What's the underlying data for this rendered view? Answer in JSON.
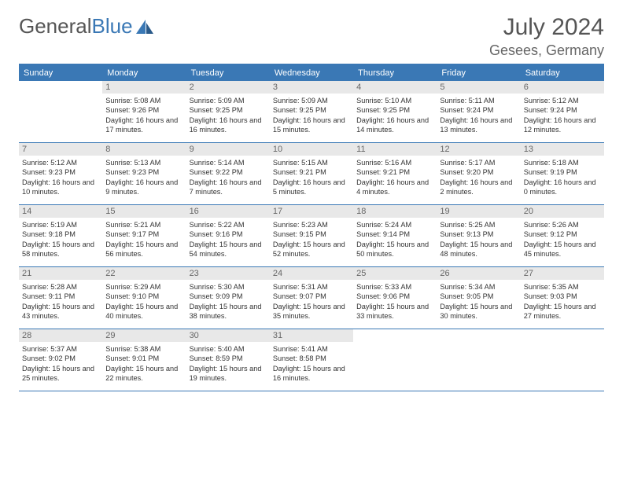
{
  "logo": {
    "text1": "General",
    "text2": "Blue"
  },
  "title": "July 2024",
  "location": "Gesees, Germany",
  "weekdays": [
    "Sunday",
    "Monday",
    "Tuesday",
    "Wednesday",
    "Thursday",
    "Friday",
    "Saturday"
  ],
  "colors": {
    "header_bar": "#3a78b5",
    "daynum_bg": "#e8e8e8",
    "text": "#333333",
    "title": "#555555"
  },
  "layout": {
    "start_offset": 1,
    "days_in_month": 31
  },
  "days": [
    {
      "n": 1,
      "sunrise": "5:08 AM",
      "sunset": "9:26 PM",
      "daylight": "16 hours and 17 minutes."
    },
    {
      "n": 2,
      "sunrise": "5:09 AM",
      "sunset": "9:25 PM",
      "daylight": "16 hours and 16 minutes."
    },
    {
      "n": 3,
      "sunrise": "5:09 AM",
      "sunset": "9:25 PM",
      "daylight": "16 hours and 15 minutes."
    },
    {
      "n": 4,
      "sunrise": "5:10 AM",
      "sunset": "9:25 PM",
      "daylight": "16 hours and 14 minutes."
    },
    {
      "n": 5,
      "sunrise": "5:11 AM",
      "sunset": "9:24 PM",
      "daylight": "16 hours and 13 minutes."
    },
    {
      "n": 6,
      "sunrise": "5:12 AM",
      "sunset": "9:24 PM",
      "daylight": "16 hours and 12 minutes."
    },
    {
      "n": 7,
      "sunrise": "5:12 AM",
      "sunset": "9:23 PM",
      "daylight": "16 hours and 10 minutes."
    },
    {
      "n": 8,
      "sunrise": "5:13 AM",
      "sunset": "9:23 PM",
      "daylight": "16 hours and 9 minutes."
    },
    {
      "n": 9,
      "sunrise": "5:14 AM",
      "sunset": "9:22 PM",
      "daylight": "16 hours and 7 minutes."
    },
    {
      "n": 10,
      "sunrise": "5:15 AM",
      "sunset": "9:21 PM",
      "daylight": "16 hours and 5 minutes."
    },
    {
      "n": 11,
      "sunrise": "5:16 AM",
      "sunset": "9:21 PM",
      "daylight": "16 hours and 4 minutes."
    },
    {
      "n": 12,
      "sunrise": "5:17 AM",
      "sunset": "9:20 PM",
      "daylight": "16 hours and 2 minutes."
    },
    {
      "n": 13,
      "sunrise": "5:18 AM",
      "sunset": "9:19 PM",
      "daylight": "16 hours and 0 minutes."
    },
    {
      "n": 14,
      "sunrise": "5:19 AM",
      "sunset": "9:18 PM",
      "daylight": "15 hours and 58 minutes."
    },
    {
      "n": 15,
      "sunrise": "5:21 AM",
      "sunset": "9:17 PM",
      "daylight": "15 hours and 56 minutes."
    },
    {
      "n": 16,
      "sunrise": "5:22 AM",
      "sunset": "9:16 PM",
      "daylight": "15 hours and 54 minutes."
    },
    {
      "n": 17,
      "sunrise": "5:23 AM",
      "sunset": "9:15 PM",
      "daylight": "15 hours and 52 minutes."
    },
    {
      "n": 18,
      "sunrise": "5:24 AM",
      "sunset": "9:14 PM",
      "daylight": "15 hours and 50 minutes."
    },
    {
      "n": 19,
      "sunrise": "5:25 AM",
      "sunset": "9:13 PM",
      "daylight": "15 hours and 48 minutes."
    },
    {
      "n": 20,
      "sunrise": "5:26 AM",
      "sunset": "9:12 PM",
      "daylight": "15 hours and 45 minutes."
    },
    {
      "n": 21,
      "sunrise": "5:28 AM",
      "sunset": "9:11 PM",
      "daylight": "15 hours and 43 minutes."
    },
    {
      "n": 22,
      "sunrise": "5:29 AM",
      "sunset": "9:10 PM",
      "daylight": "15 hours and 40 minutes."
    },
    {
      "n": 23,
      "sunrise": "5:30 AM",
      "sunset": "9:09 PM",
      "daylight": "15 hours and 38 minutes."
    },
    {
      "n": 24,
      "sunrise": "5:31 AM",
      "sunset": "9:07 PM",
      "daylight": "15 hours and 35 minutes."
    },
    {
      "n": 25,
      "sunrise": "5:33 AM",
      "sunset": "9:06 PM",
      "daylight": "15 hours and 33 minutes."
    },
    {
      "n": 26,
      "sunrise": "5:34 AM",
      "sunset": "9:05 PM",
      "daylight": "15 hours and 30 minutes."
    },
    {
      "n": 27,
      "sunrise": "5:35 AM",
      "sunset": "9:03 PM",
      "daylight": "15 hours and 27 minutes."
    },
    {
      "n": 28,
      "sunrise": "5:37 AM",
      "sunset": "9:02 PM",
      "daylight": "15 hours and 25 minutes."
    },
    {
      "n": 29,
      "sunrise": "5:38 AM",
      "sunset": "9:01 PM",
      "daylight": "15 hours and 22 minutes."
    },
    {
      "n": 30,
      "sunrise": "5:40 AM",
      "sunset": "8:59 PM",
      "daylight": "15 hours and 19 minutes."
    },
    {
      "n": 31,
      "sunrise": "5:41 AM",
      "sunset": "8:58 PM",
      "daylight": "15 hours and 16 minutes."
    }
  ]
}
